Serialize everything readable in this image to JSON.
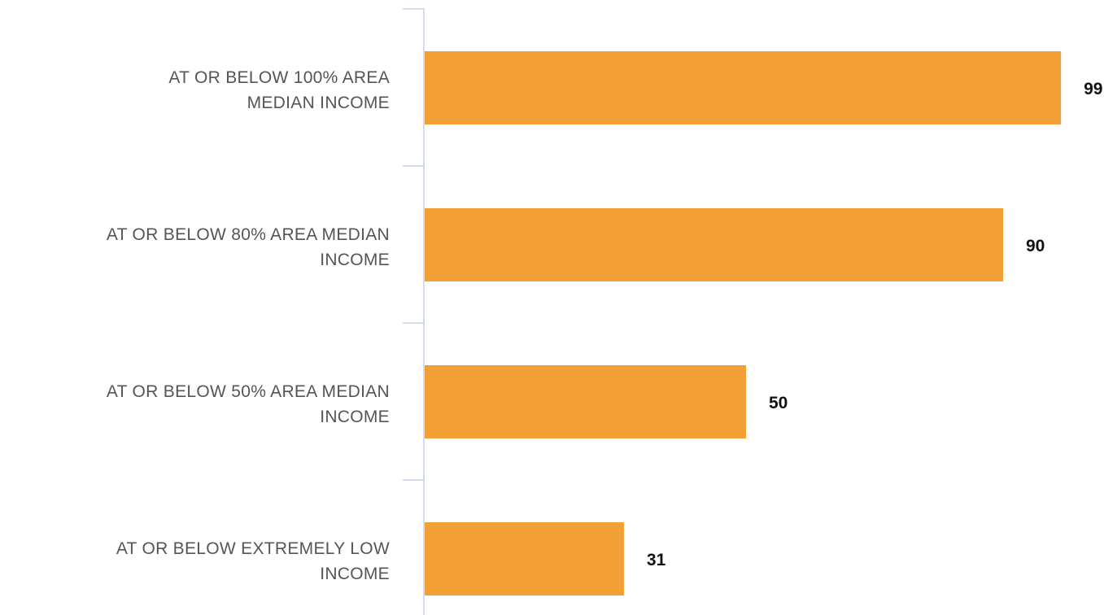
{
  "chart_data": {
    "type": "bar",
    "orientation": "horizontal",
    "categories": [
      "AT OR BELOW 100% AREA MEDIAN INCOME",
      "AT OR BELOW 80% AREA MEDIAN INCOME",
      "AT OR BELOW 50% AREA MEDIAN INCOME",
      "AT OR BELOW EXTREMELY LOW INCOME"
    ],
    "category_lines": [
      [
        "AT OR BELOW 100% AREA",
        "MEDIAN INCOME"
      ],
      [
        "AT OR BELOW 80% AREA MEDIAN",
        "INCOME"
      ],
      [
        "AT OR BELOW 50% AREA MEDIAN",
        "INCOME"
      ],
      [
        "AT OR BELOW EXTREMELY LOW",
        "INCOME"
      ]
    ],
    "values": [
      99,
      90,
      50,
      31
    ],
    "xlim": [
      0,
      100
    ],
    "grid": false,
    "legend": "none",
    "bar_color": "#F2A035",
    "axis_color": "#C5D0E6"
  }
}
